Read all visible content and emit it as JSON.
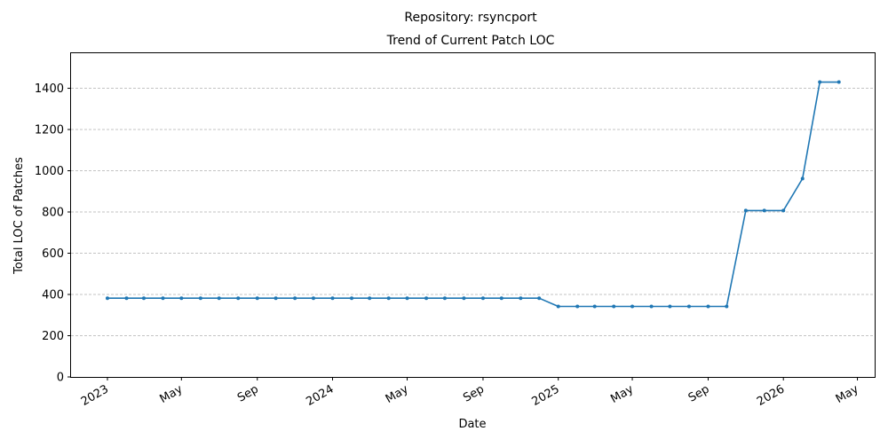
{
  "chart_data": {
    "type": "line",
    "title_line1": "Repository: rsyncport",
    "title_line2": "Trend of Current Patch LOC",
    "xlabel": "Date",
    "ylabel": "Total LOC of Patches",
    "ylim": [
      0,
      1570
    ],
    "xlim": [
      "2022-11-03",
      "2026-05-29"
    ],
    "y_ticks": [
      0,
      200,
      400,
      600,
      800,
      1000,
      1200,
      1400
    ],
    "x_ticks": [
      {
        "date": "2023-01-01",
        "label": "2023"
      },
      {
        "date": "2023-05-01",
        "label": "May"
      },
      {
        "date": "2023-09-01",
        "label": "Sep"
      },
      {
        "date": "2024-01-01",
        "label": "2024"
      },
      {
        "date": "2024-05-01",
        "label": "May"
      },
      {
        "date": "2024-09-01",
        "label": "Sep"
      },
      {
        "date": "2025-01-01",
        "label": "2025"
      },
      {
        "date": "2025-05-01",
        "label": "May"
      },
      {
        "date": "2025-09-01",
        "label": "Sep"
      },
      {
        "date": "2026-01-01",
        "label": "2026"
      },
      {
        "date": "2026-05-01",
        "label": "May"
      }
    ],
    "grid": "y",
    "line_color": "#1f77b4",
    "series": [
      {
        "x": [
          "2023-01-01",
          "2023-02-01",
          "2023-03-01",
          "2023-04-01",
          "2023-05-01",
          "2023-06-01",
          "2023-07-01",
          "2023-08-01",
          "2023-09-01",
          "2023-10-01",
          "2023-11-01",
          "2023-12-01",
          "2024-01-01",
          "2024-02-01",
          "2024-03-01",
          "2024-04-01",
          "2024-05-01",
          "2024-06-01",
          "2024-07-01",
          "2024-08-01",
          "2024-09-01",
          "2024-10-01",
          "2024-11-01",
          "2024-12-01",
          "2025-01-01",
          "2025-02-01",
          "2025-03-01",
          "2025-04-01",
          "2025-05-01",
          "2025-06-01",
          "2025-07-01",
          "2025-08-01",
          "2025-09-01",
          "2025-10-01",
          "2025-11-01",
          "2025-12-01",
          "2026-01-01",
          "2026-02-01",
          "2026-03-01",
          "2026-04-01"
        ],
        "y": [
          382,
          382,
          382,
          382,
          382,
          382,
          382,
          382,
          382,
          382,
          382,
          382,
          382,
          382,
          382,
          382,
          382,
          382,
          382,
          382,
          382,
          382,
          382,
          382,
          342,
          342,
          342,
          342,
          342,
          342,
          342,
          342,
          342,
          342,
          807,
          807,
          807,
          962,
          1430,
          1430
        ]
      }
    ]
  }
}
